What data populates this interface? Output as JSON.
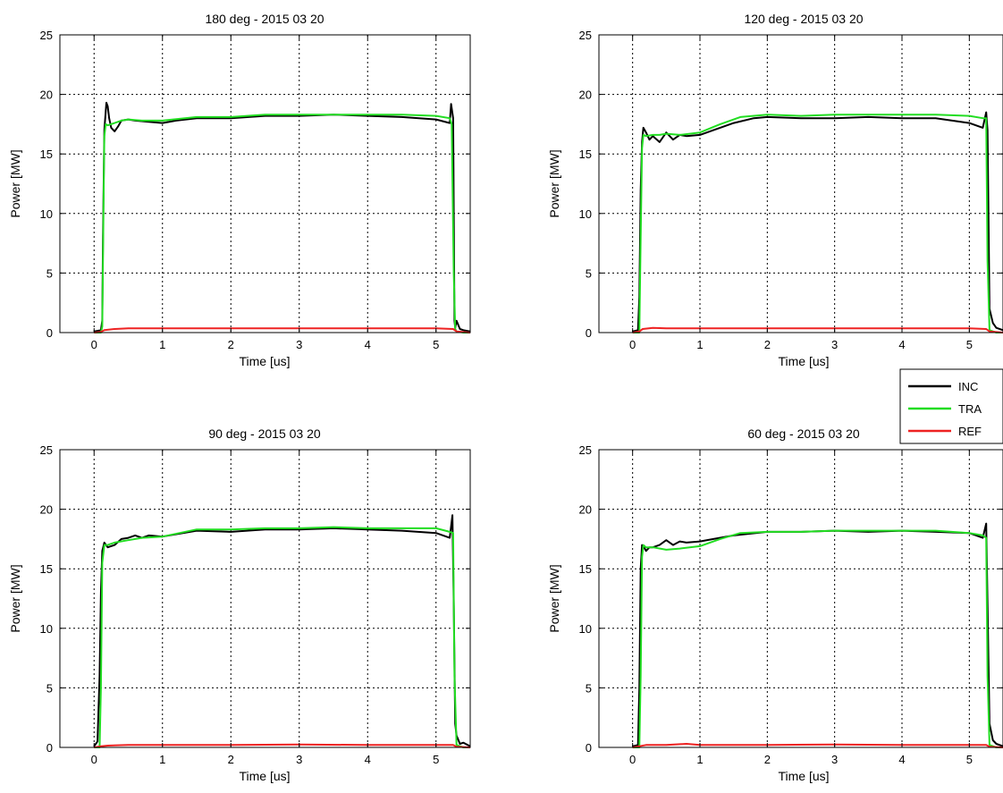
{
  "chart_data": [
    {
      "type": "line",
      "title": "180 deg - 2015 03 20",
      "xlabel": "Time [us]",
      "ylabel": "Power [MW]",
      "xlim": [
        -0.5,
        5.5
      ],
      "ylim": [
        0,
        25
      ],
      "xticks": [
        0,
        1,
        2,
        3,
        4,
        5
      ],
      "yticks": [
        0,
        5,
        10,
        15,
        20,
        25
      ],
      "grid": true,
      "series": [
        {
          "name": "INC",
          "color": "#000000",
          "x": [
            0.0,
            0.1,
            0.12,
            0.13,
            0.15,
            0.18,
            0.2,
            0.22,
            0.25,
            0.3,
            0.35,
            0.4,
            0.5,
            0.6,
            0.8,
            1.0,
            1.2,
            1.5,
            2.0,
            2.5,
            3.0,
            3.5,
            4.0,
            4.5,
            5.0,
            5.2,
            5.22,
            5.25,
            5.27,
            5.28,
            5.3,
            5.35,
            5.4,
            5.5
          ],
          "values": [
            0.1,
            0.2,
            1.0,
            8.0,
            17.0,
            19.3,
            19.0,
            18.0,
            17.2,
            16.9,
            17.3,
            17.8,
            17.9,
            17.8,
            17.7,
            17.6,
            17.8,
            18.0,
            18.0,
            18.2,
            18.2,
            18.3,
            18.2,
            18.1,
            17.9,
            17.6,
            19.2,
            18.0,
            1.0,
            0.4,
            1.0,
            0.3,
            0.2,
            0.1
          ]
        },
        {
          "name": "TRA",
          "color": "#22dd22",
          "x": [
            0.0,
            0.1,
            0.12,
            0.14,
            0.15,
            0.17,
            0.2,
            0.3,
            0.4,
            0.5,
            0.7,
            1.0,
            1.5,
            2.0,
            2.5,
            3.0,
            3.5,
            4.0,
            4.5,
            5.0,
            5.2,
            5.23,
            5.26,
            5.28,
            5.3,
            5.4,
            5.5
          ],
          "values": [
            0.0,
            0.0,
            0.5,
            12.0,
            16.5,
            17.5,
            17.4,
            17.6,
            17.8,
            17.9,
            17.8,
            17.8,
            18.1,
            18.1,
            18.3,
            18.3,
            18.3,
            18.3,
            18.3,
            18.2,
            18.0,
            17.5,
            5.0,
            0.3,
            0.1,
            0.0,
            0.0
          ]
        },
        {
          "name": "REF",
          "color": "#ee2222",
          "x": [
            0.0,
            0.1,
            0.15,
            0.3,
            0.5,
            1.0,
            2.0,
            3.0,
            4.0,
            5.0,
            5.25,
            5.3,
            5.5
          ],
          "values": [
            0.0,
            0.05,
            0.2,
            0.3,
            0.35,
            0.35,
            0.35,
            0.35,
            0.35,
            0.35,
            0.3,
            0.1,
            0.0
          ]
        }
      ]
    },
    {
      "type": "line",
      "title": "120 deg - 2015 03 20",
      "xlabel": "Time [us]",
      "ylabel": "Power [MW]",
      "xlim": [
        -0.5,
        5.5
      ],
      "ylim": [
        0,
        25
      ],
      "xticks": [
        0,
        1,
        2,
        3,
        4,
        5
      ],
      "yticks": [
        0,
        5,
        10,
        15,
        20,
        25
      ],
      "grid": true,
      "series": [
        {
          "name": "INC",
          "color": "#000000",
          "x": [
            0.0,
            0.08,
            0.1,
            0.12,
            0.14,
            0.16,
            0.2,
            0.25,
            0.3,
            0.4,
            0.5,
            0.6,
            0.7,
            0.8,
            1.0,
            1.2,
            1.5,
            1.8,
            2.0,
            2.5,
            3.0,
            3.5,
            4.0,
            4.5,
            5.0,
            5.2,
            5.25,
            5.27,
            5.3,
            5.35,
            5.4,
            5.5
          ],
          "values": [
            0.1,
            0.2,
            3.0,
            12.0,
            16.0,
            17.2,
            16.8,
            16.2,
            16.5,
            16.0,
            16.8,
            16.2,
            16.6,
            16.5,
            16.6,
            17.0,
            17.6,
            18.0,
            18.1,
            18.0,
            18.0,
            18.1,
            18.0,
            18.0,
            17.6,
            17.2,
            18.5,
            17.0,
            2.0,
            0.8,
            0.4,
            0.2
          ]
        },
        {
          "name": "TRA",
          "color": "#22dd22",
          "x": [
            0.0,
            0.1,
            0.12,
            0.14,
            0.16,
            0.2,
            0.3,
            0.4,
            0.5,
            0.7,
            1.0,
            1.3,
            1.6,
            2.0,
            2.5,
            3.0,
            3.5,
            4.0,
            4.5,
            5.0,
            5.2,
            5.25,
            5.27,
            5.3,
            5.4,
            5.5
          ],
          "values": [
            0.0,
            0.0,
            8.0,
            15.5,
            16.6,
            16.5,
            16.6,
            16.6,
            16.7,
            16.6,
            16.8,
            17.5,
            18.1,
            18.3,
            18.2,
            18.3,
            18.3,
            18.3,
            18.3,
            18.2,
            18.0,
            18.0,
            6.0,
            0.2,
            0.0,
            0.0
          ]
        },
        {
          "name": "REF",
          "color": "#ee2222",
          "x": [
            0.0,
            0.1,
            0.15,
            0.3,
            0.5,
            1.0,
            2.0,
            3.0,
            4.0,
            5.0,
            5.25,
            5.3,
            5.5
          ],
          "values": [
            0.0,
            0.1,
            0.3,
            0.4,
            0.35,
            0.35,
            0.35,
            0.35,
            0.35,
            0.35,
            0.3,
            0.1,
            0.0
          ]
        }
      ]
    },
    {
      "type": "line",
      "title": "90 deg - 2015 03 20",
      "xlabel": "Time [us]",
      "ylabel": "Power [MW]",
      "xlim": [
        -0.5,
        5.5
      ],
      "ylim": [
        0,
        25
      ],
      "xticks": [
        0,
        1,
        2,
        3,
        4,
        5
      ],
      "yticks": [
        0,
        5,
        10,
        15,
        20,
        25
      ],
      "grid": true,
      "series": [
        {
          "name": "INC",
          "color": "#000000",
          "x": [
            0.0,
            0.05,
            0.08,
            0.1,
            0.12,
            0.15,
            0.2,
            0.3,
            0.4,
            0.5,
            0.6,
            0.7,
            0.8,
            1.0,
            1.5,
            2.0,
            2.5,
            3.0,
            3.5,
            4.0,
            4.5,
            5.0,
            5.2,
            5.24,
            5.26,
            5.28,
            5.3,
            5.35,
            5.4,
            5.5
          ],
          "values": [
            0.1,
            0.5,
            6.0,
            13.0,
            16.5,
            17.2,
            16.8,
            17.0,
            17.5,
            17.6,
            17.8,
            17.6,
            17.8,
            17.7,
            18.2,
            18.1,
            18.3,
            18.3,
            18.4,
            18.3,
            18.2,
            18.0,
            17.6,
            19.5,
            12.0,
            2.0,
            1.0,
            0.3,
            0.4,
            0.1
          ]
        },
        {
          "name": "TRA",
          "color": "#22dd22",
          "x": [
            0.0,
            0.08,
            0.1,
            0.12,
            0.15,
            0.2,
            0.3,
            0.5,
            0.7,
            1.0,
            1.5,
            2.0,
            2.5,
            3.0,
            3.5,
            4.0,
            4.5,
            5.0,
            5.2,
            5.25,
            5.27,
            5.3,
            5.4,
            5.5
          ],
          "values": [
            0.0,
            0.0,
            5.0,
            15.5,
            17.0,
            17.0,
            17.2,
            17.4,
            17.6,
            17.7,
            18.3,
            18.3,
            18.4,
            18.4,
            18.5,
            18.4,
            18.4,
            18.4,
            18.1,
            18.0,
            6.0,
            0.2,
            0.0,
            0.0
          ]
        },
        {
          "name": "REF",
          "color": "#ee2222",
          "x": [
            0.0,
            0.1,
            0.2,
            0.5,
            1.0,
            2.0,
            3.0,
            4.0,
            5.0,
            5.25,
            5.3,
            5.5
          ],
          "values": [
            0.0,
            0.1,
            0.15,
            0.2,
            0.2,
            0.2,
            0.25,
            0.2,
            0.2,
            0.2,
            0.05,
            0.0
          ]
        }
      ]
    },
    {
      "type": "line",
      "title": "60 deg - 2015 03 20",
      "xlabel": "Time [us]",
      "ylabel": "Power [MW]",
      "xlim": [
        -0.5,
        5.5
      ],
      "ylim": [
        0,
        25
      ],
      "xticks": [
        0,
        1,
        2,
        3,
        4,
        5
      ],
      "yticks": [
        0,
        5,
        10,
        15,
        20,
        25
      ],
      "grid": true,
      "series": [
        {
          "name": "INC",
          "color": "#000000",
          "x": [
            0.0,
            0.08,
            0.1,
            0.12,
            0.14,
            0.16,
            0.2,
            0.25,
            0.3,
            0.4,
            0.5,
            0.6,
            0.7,
            0.8,
            1.0,
            1.2,
            1.5,
            2.0,
            2.5,
            3.0,
            3.5,
            4.0,
            4.5,
            5.0,
            5.2,
            5.25,
            5.27,
            5.3,
            5.35,
            5.4,
            5.5
          ],
          "values": [
            0.1,
            0.2,
            5.0,
            15.0,
            17.0,
            16.9,
            16.5,
            16.8,
            16.8,
            17.0,
            17.4,
            17.0,
            17.3,
            17.2,
            17.3,
            17.5,
            17.8,
            18.1,
            18.1,
            18.2,
            18.1,
            18.2,
            18.1,
            18.0,
            17.6,
            18.8,
            12.0,
            2.0,
            0.6,
            0.3,
            0.1
          ]
        },
        {
          "name": "TRA",
          "color": "#22dd22",
          "x": [
            0.0,
            0.1,
            0.12,
            0.14,
            0.16,
            0.2,
            0.3,
            0.5,
            0.7,
            1.0,
            1.3,
            1.6,
            2.0,
            2.5,
            3.0,
            3.5,
            4.0,
            4.5,
            5.0,
            5.2,
            5.25,
            5.27,
            5.3,
            5.4,
            5.5
          ],
          "values": [
            0.0,
            0.0,
            6.0,
            16.0,
            17.0,
            16.8,
            16.8,
            16.6,
            16.7,
            16.9,
            17.5,
            18.0,
            18.1,
            18.1,
            18.2,
            18.2,
            18.2,
            18.2,
            18.0,
            17.8,
            17.6,
            6.0,
            0.2,
            0.0,
            0.0
          ]
        },
        {
          "name": "REF",
          "color": "#ee2222",
          "x": [
            0.0,
            0.1,
            0.2,
            0.5,
            0.8,
            1.0,
            2.0,
            3.0,
            4.0,
            5.0,
            5.25,
            5.3,
            5.5
          ],
          "values": [
            0.0,
            0.1,
            0.2,
            0.2,
            0.3,
            0.2,
            0.2,
            0.25,
            0.2,
            0.2,
            0.2,
            0.05,
            0.0
          ]
        }
      ]
    }
  ],
  "legend": {
    "position": "between right panels",
    "entries": [
      {
        "label": "INC",
        "color": "#000000"
      },
      {
        "label": "TRA",
        "color": "#22dd22"
      },
      {
        "label": "REF",
        "color": "#ee2222"
      }
    ]
  }
}
